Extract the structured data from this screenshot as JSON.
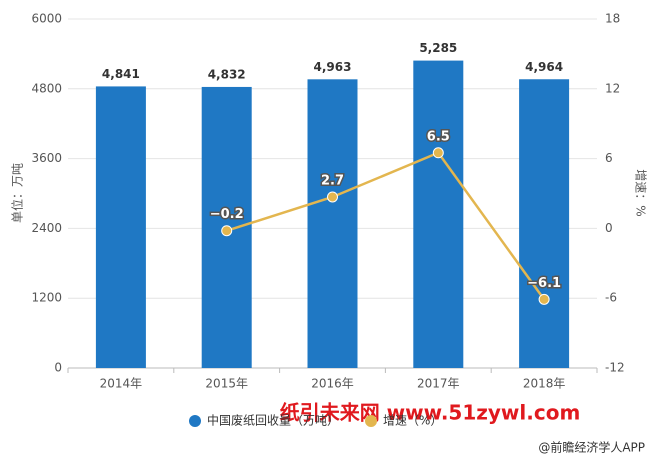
{
  "chart_data": {
    "type": "bar",
    "categories": [
      "2014年",
      "2015年",
      "2016年",
      "2017年",
      "2018年"
    ],
    "y_label": "单位：万吨",
    "y2_label": "增速：%",
    "series": [
      {
        "name": "中国废纸回收量（万吨）",
        "type": "bar",
        "color": "#1f78c4",
        "values": [
          4841,
          4832,
          4963,
          5285,
          4964
        ],
        "value_labels": [
          "4,841",
          "4,832",
          "4,963",
          "5,285",
          "4,964"
        ]
      },
      {
        "name": "增速（%）",
        "type": "line",
        "axis": "y2",
        "color": "#e3b64f",
        "values": [
          null,
          -0.2,
          2.7,
          6.5,
          -6.1
        ],
        "value_labels": [
          null,
          "−0.2",
          "2.7",
          "6.5",
          "−6.1"
        ]
      }
    ],
    "ylim": [
      0,
      6000
    ],
    "yticks": [
      0,
      1200,
      2400,
      3600,
      4800,
      6000
    ],
    "y2lim": [
      -12,
      18
    ],
    "y2ticks": [
      -12,
      -6,
      0,
      6,
      12,
      18
    ],
    "grid": true,
    "watermark": "纸引未来网 www.51zywl.com",
    "source": "@前瞻经济学人APP"
  }
}
